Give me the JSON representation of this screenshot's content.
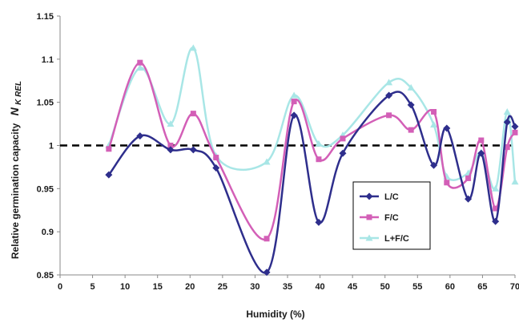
{
  "chart_data": {
    "type": "line",
    "title": "",
    "xlabel": "Humidity  (%)",
    "ylabel": "Relative germination capacity",
    "ylabel_symbol": "N",
    "ylabel_subscript": "K REL",
    "xlim": [
      0,
      70
    ],
    "ylim": [
      0.85,
      1.15
    ],
    "xticks": [
      0,
      5,
      10,
      15,
      20,
      25,
      30,
      35,
      40,
      45,
      50,
      55,
      60,
      65,
      70
    ],
    "yticks": [
      0.85,
      0.9,
      0.95,
      1,
      1.05,
      1.1,
      1.15
    ],
    "ytick_labels": [
      "0.85",
      "0.9",
      "0.95",
      "1",
      "1.05",
      "1.1",
      "1.15"
    ],
    "grid": false,
    "legend_position": "lower-right",
    "reference_line": {
      "y": 1,
      "style": "dashed",
      "color": "#000000"
    },
    "series": [
      {
        "name": "L/C",
        "color": "#2e2e8c",
        "marker": "diamond",
        "x": [
          7.5,
          12.3,
          17,
          20.5,
          24,
          31.8,
          36,
          39.8,
          43.5,
          50.6,
          54,
          57.5,
          59.5,
          62.8,
          64.8,
          67,
          68.8,
          70
        ],
        "y": [
          0.966,
          1.011,
          0.995,
          0.995,
          0.974,
          0.853,
          1.035,
          0.911,
          0.991,
          1.058,
          1.047,
          0.977,
          1.02,
          0.938,
          0.991,
          0.912,
          1.027,
          1.022
        ]
      },
      {
        "name": "F/C",
        "color": "#d35fb7",
        "marker": "square",
        "x": [
          7.5,
          12.3,
          17,
          20.5,
          24,
          31.8,
          36,
          39.8,
          43.5,
          50.6,
          54,
          57.5,
          59.5,
          62.8,
          64.8,
          67,
          68.8,
          70
        ],
        "y": [
          0.996,
          1.096,
          1.0,
          1.037,
          0.986,
          0.892,
          1.051,
          0.984,
          1.008,
          1.035,
          1.018,
          1.039,
          0.957,
          0.962,
          1.006,
          0.927,
          0.998,
          1.015
        ]
      },
      {
        "name": "L+F/C",
        "color": "#a8e6e6",
        "marker": "triangle",
        "x": [
          7.5,
          12.3,
          17,
          20.5,
          24,
          31.8,
          36,
          39.8,
          43.5,
          50.6,
          54,
          57.5,
          59.5,
          62.8,
          64.8,
          67,
          68.8,
          70
        ],
        "y": [
          1.0,
          1.09,
          1.025,
          1.113,
          0.988,
          0.981,
          1.058,
          1.002,
          1.012,
          1.073,
          1.067,
          1.024,
          0.964,
          0.968,
          0.992,
          0.95,
          1.039,
          0.958
        ]
      }
    ]
  }
}
